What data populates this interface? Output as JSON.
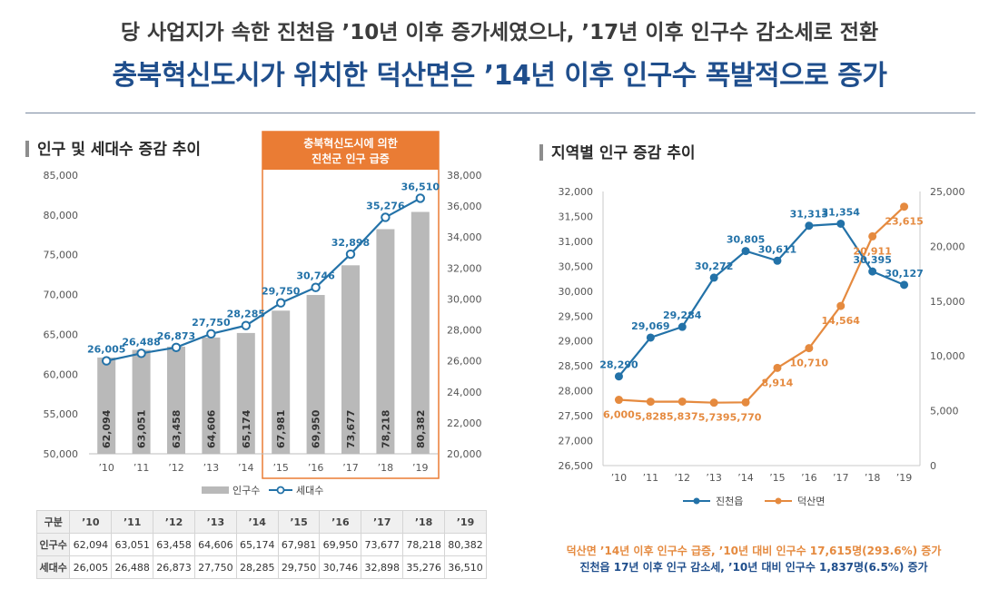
{
  "headline": {
    "line1": "당 사업지가 속한 진천읍 ’10년 이후 증가세였으나, ’17년 이후 인구수 감소세로 전환",
    "line2": "충북혁신도시가 위치한 덕산면은 ’14년 이후 인구수 폭발적으로 증가"
  },
  "left": {
    "title": "인구 및 세대수 증감 추이",
    "highlight_label": [
      "충북혁신도시에 의한",
      "진천군 인구 급증"
    ]
  },
  "right": {
    "title": "지역별 인구 증감 추이",
    "notes": [
      "덕산면 ’14년 이후 인구수 급증, ’10년 대비 인구수 17,615명(293.6%) 증가",
      "진천읍 17년 이후 인구 감소세, ’10년 대비 인구수 1,837명(6.5%) 증가"
    ]
  },
  "colors": {
    "navy": "#1f4e8c",
    "blue": "#2372a8",
    "orange": "#e58a3f",
    "bar": "#b9b9b9",
    "highlight": "#ea7c34"
  },
  "table": {
    "header": [
      "구분",
      "’10",
      "’11",
      "’12",
      "’13",
      "’14",
      "’15",
      "’16",
      "’17",
      "’18",
      "’19"
    ],
    "rows": [
      [
        "인구수",
        "62,094",
        "63,051",
        "63,458",
        "64,606",
        "65,174",
        "67,981",
        "69,950",
        "73,677",
        "78,218",
        "80,382"
      ],
      [
        "세대수",
        "26,005",
        "26,488",
        "26,873",
        "27,750",
        "28,285",
        "29,750",
        "30,746",
        "32,898",
        "35,276",
        "36,510"
      ]
    ]
  },
  "chart_data": [
    {
      "type": "bar+line",
      "categories": [
        "’10",
        "’11",
        "’12",
        "’13",
        "’14",
        "’15",
        "’16",
        "’17",
        "’18",
        "’19"
      ],
      "series": [
        {
          "name": "인구수",
          "type": "bar",
          "axis": "left",
          "values": [
            62094,
            63051,
            63458,
            64606,
            65174,
            67981,
            69950,
            73677,
            78218,
            80382
          ],
          "labels": [
            "62,094",
            "63,051",
            "63,458",
            "64,606",
            "65,174",
            "67,981",
            "69,950",
            "73,677",
            "78,218",
            "80,382"
          ]
        },
        {
          "name": "세대수",
          "type": "line",
          "axis": "right",
          "values": [
            26005,
            26488,
            26873,
            27750,
            28285,
            29750,
            30746,
            32898,
            35276,
            36510
          ],
          "labels": [
            "26,005",
            "26,488",
            "26,873",
            "27,750",
            "28,285",
            "29,750",
            "30,746",
            "32,898",
            "35,276",
            "36,510"
          ]
        }
      ],
      "y_left": {
        "min": 50000,
        "max": 85000,
        "ticks": [
          50000,
          55000,
          60000,
          65000,
          70000,
          75000,
          80000,
          85000
        ],
        "tick_labels": [
          "50,000",
          "55,000",
          "60,000",
          "65,000",
          "70,000",
          "75,000",
          "80,000",
          "85,000"
        ]
      },
      "y_right": {
        "min": 20000,
        "max": 38000,
        "ticks": [
          20000,
          22000,
          24000,
          26000,
          28000,
          30000,
          32000,
          34000,
          36000,
          38000
        ],
        "tick_labels": [
          "20,000",
          "22,000",
          "24,000",
          "26,000",
          "28,000",
          "30,000",
          "32,000",
          "34,000",
          "36,000",
          "38,000"
        ]
      },
      "highlight_range": [
        "’15",
        "’19"
      ],
      "legend": "bottom",
      "grid": false
    },
    {
      "type": "line",
      "categories": [
        "’10",
        "’11",
        "’12",
        "’13",
        "’14",
        "’15",
        "’16",
        "’17",
        "’18",
        "’19"
      ],
      "series": [
        {
          "name": "진천읍",
          "axis": "left",
          "values": [
            28290,
            29069,
            29284,
            30272,
            30805,
            30611,
            31313,
            31354,
            30395,
            30127
          ],
          "labels": [
            "28,290",
            "29,069",
            "29,284",
            "30,272",
            "30,805",
            "30,611",
            "31,313",
            "31,354",
            "30,395",
            "30,127"
          ]
        },
        {
          "name": "덕산면",
          "axis": "right",
          "values": [
            6000,
            5828,
            5837,
            5739,
            5770,
            8914,
            10710,
            14564,
            20911,
            23615
          ],
          "labels": [
            "6,000",
            "5,828",
            "5,837",
            "5,739",
            "5,770",
            "8,914",
            "10,710",
            "14,564",
            "20,911",
            "23,615"
          ]
        }
      ],
      "y_left": {
        "min": 26500,
        "max": 32000,
        "ticks": [
          26500,
          27000,
          27500,
          28000,
          28500,
          29000,
          29500,
          30000,
          30500,
          31000,
          31500,
          32000
        ],
        "tick_labels": [
          "26,500",
          "27,000",
          "27,500",
          "28,000",
          "28,500",
          "29,000",
          "29,500",
          "30,000",
          "30,500",
          "31,000",
          "31,500",
          "32,000"
        ]
      },
      "y_right": {
        "min": 0,
        "max": 25000,
        "ticks": [
          0,
          5000,
          10000,
          15000,
          20000,
          25000
        ],
        "tick_labels": [
          "0",
          "5,000",
          "10,000",
          "15,000",
          "20,000",
          "25,000"
        ]
      },
      "legend": "bottom",
      "grid": false
    }
  ]
}
